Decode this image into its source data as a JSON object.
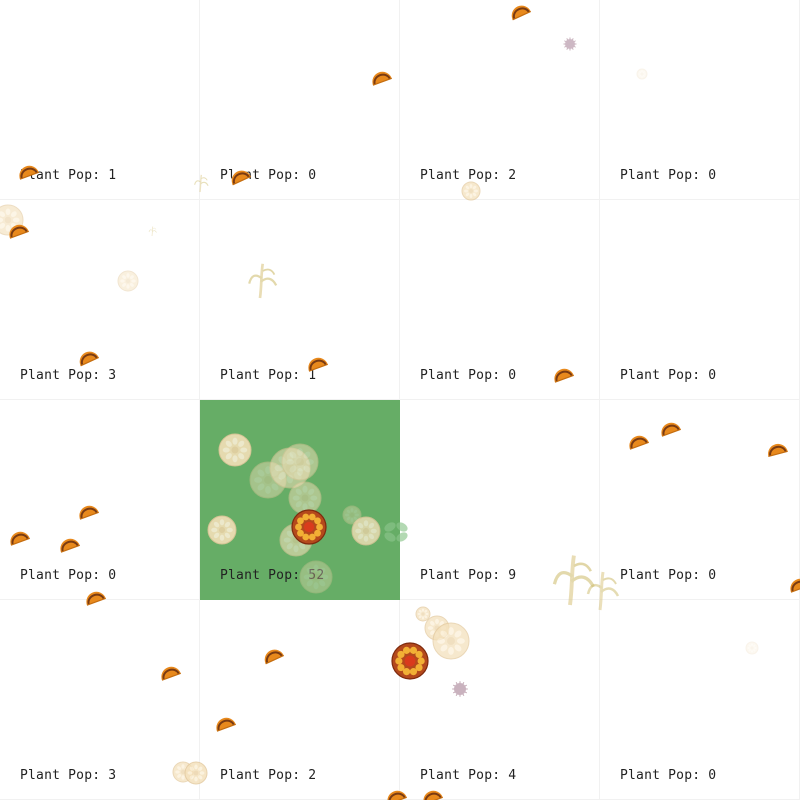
{
  "grid": {
    "rows": 4,
    "cols": 4,
    "label_prefix": "Plant Pop: ",
    "active_cell": [
      2,
      1
    ],
    "active_color": "#66ad66",
    "cells": [
      [
        1,
        0,
        2,
        0
      ],
      [
        3,
        1,
        0,
        0
      ],
      [
        0,
        52,
        9,
        0
      ],
      [
        3,
        2,
        4,
        0
      ]
    ]
  },
  "sprites": {
    "taco_icon": "taco-icon",
    "plant_icon": "corn-stalk-icon",
    "corn_icon": "corn-cross-section-icon",
    "germ_icon": "germ-icon",
    "herbivore_icon": "flower-creature-icon"
  },
  "colors": {
    "taco_shell": "#e8891c",
    "taco_filling": "#7a3b12",
    "corn_husk": "#f0d6a0",
    "stalk": "#d8c27a"
  }
}
